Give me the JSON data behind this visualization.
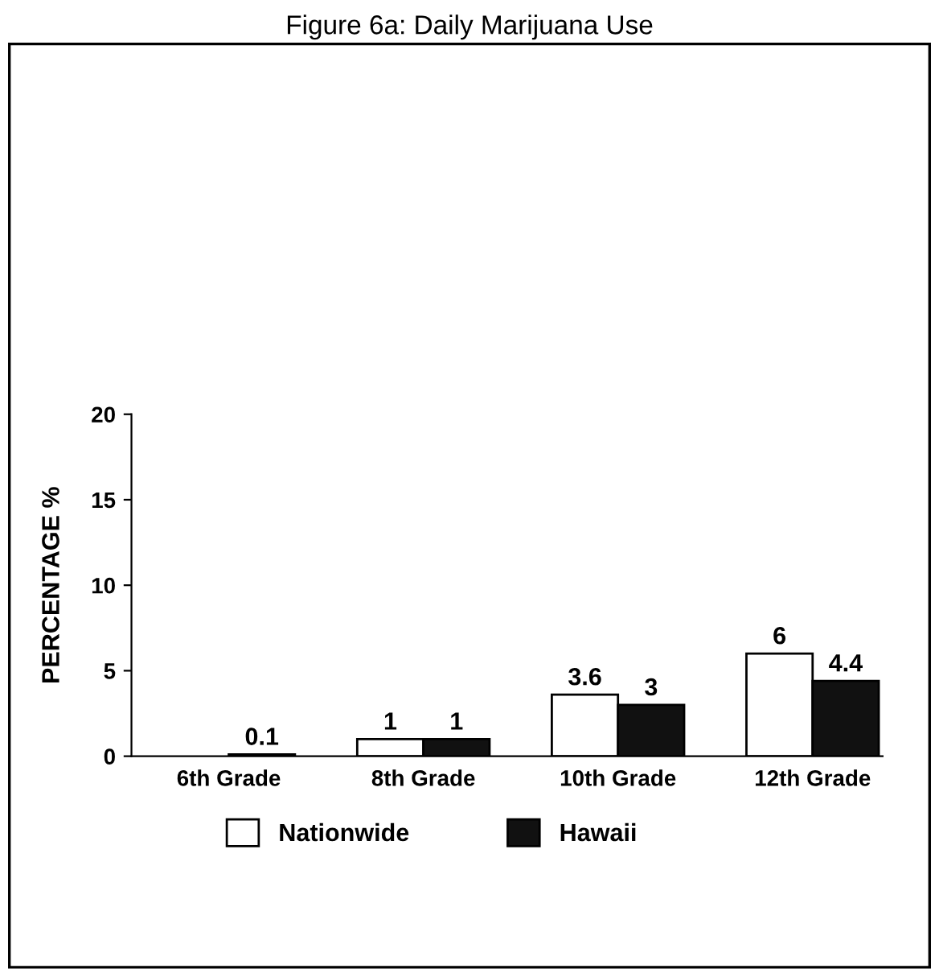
{
  "chart_data": {
    "type": "bar",
    "title": "Figure 6a: Daily Marijuana Use",
    "ylabel": "PERCENTAGE %",
    "categories": [
      "6th Grade",
      "8th Grade",
      "10th Grade",
      "12th Grade"
    ],
    "series": [
      {
        "name": "Nationwide",
        "color": "#ffffff",
        "values": [
          null,
          1,
          3.6,
          6
        ]
      },
      {
        "name": "Hawaii",
        "color": "#111111",
        "values": [
          0.1,
          1,
          3,
          4.4
        ]
      }
    ],
    "ylim": [
      0,
      20
    ],
    "yticks": [
      0,
      5,
      10,
      15,
      20
    ],
    "grid": false,
    "legend": "bottom",
    "data_labels": true
  }
}
